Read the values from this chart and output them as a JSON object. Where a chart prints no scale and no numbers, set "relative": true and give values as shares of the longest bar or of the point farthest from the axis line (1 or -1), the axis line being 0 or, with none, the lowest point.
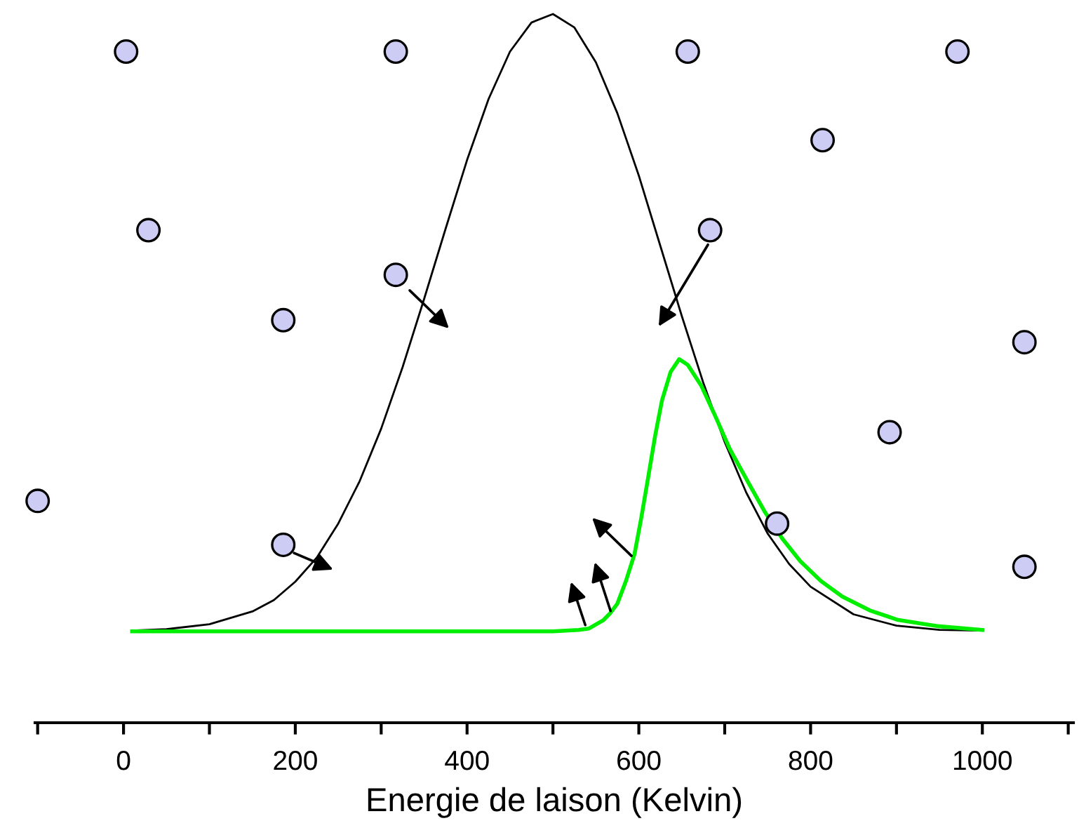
{
  "chart_data": {
    "type": "line",
    "relative": true,
    "xlabel": "Energie de laison (Kelvin)",
    "xlim": [
      -103,
      1106
    ],
    "xticks": [
      {
        "value": -100,
        "label": null
      },
      0,
      {
        "value": 100,
        "label": null
      },
      200,
      {
        "value": 300,
        "label": null
      },
      400,
      {
        "value": 500,
        "label": null
      },
      600,
      {
        "value": 700,
        "label": null
      },
      800,
      {
        "value": 900,
        "label": null
      },
      1000,
      {
        "value": 1100,
        "label": null
      }
    ],
    "tick_labels": "x",
    "grid": false,
    "legend": false,
    "series": [
      {
        "color": "#000000",
        "marker": "none",
        "x": [
          10,
          50,
          100,
          150,
          175,
          200,
          225,
          250,
          275,
          300,
          325,
          350,
          375,
          400,
          425,
          450,
          475,
          500,
          525,
          550,
          575,
          600,
          625,
          650,
          675,
          700,
          725,
          750,
          775,
          800,
          850,
          900,
          950,
          995
        ],
        "values": [
          0.13,
          0.132,
          0.139,
          0.157,
          0.173,
          0.199,
          0.233,
          0.281,
          0.341,
          0.415,
          0.502,
          0.598,
          0.697,
          0.794,
          0.88,
          0.947,
          0.988,
          1.0,
          0.981,
          0.932,
          0.86,
          0.772,
          0.673,
          0.574,
          0.48,
          0.396,
          0.325,
          0.267,
          0.224,
          0.192,
          0.153,
          0.137,
          0.131,
          0.13
        ]
      },
      {
        "color": "#00ee00",
        "marker": "none",
        "x": [
          10,
          500,
          530,
          542,
          559,
          567,
          575,
          585,
          595,
          603,
          611,
          619,
          627,
          637,
          647,
          657,
          673,
          690,
          706,
          727,
          747,
          767,
          788,
          812,
          837,
          870,
          902,
          950,
          1000
        ],
        "values": [
          0.129,
          0.129,
          0.131,
          0.133,
          0.145,
          0.155,
          0.168,
          0.2,
          0.238,
          0.29,
          0.347,
          0.405,
          0.455,
          0.495,
          0.513,
          0.505,
          0.475,
          0.43,
          0.386,
          0.34,
          0.297,
          0.26,
          0.228,
          0.2,
          0.178,
          0.158,
          0.145,
          0.136,
          0.131
        ]
      },
      {
        "type": "scatter",
        "color": "#ccccf5",
        "marker": "circle",
        "x": [
          -100,
          3,
          29,
          186,
          186,
          317,
          317,
          657,
          683,
          814,
          761,
          892,
          971,
          1049,
          1049
        ],
        "values": [
          0.313,
          0.947,
          0.695,
          0.568,
          0.251,
          0.947,
          0.632,
          0.947,
          0.695,
          0.822,
          0.281,
          0.41,
          0.947,
          0.537,
          0.22
        ]
      }
    ]
  }
}
